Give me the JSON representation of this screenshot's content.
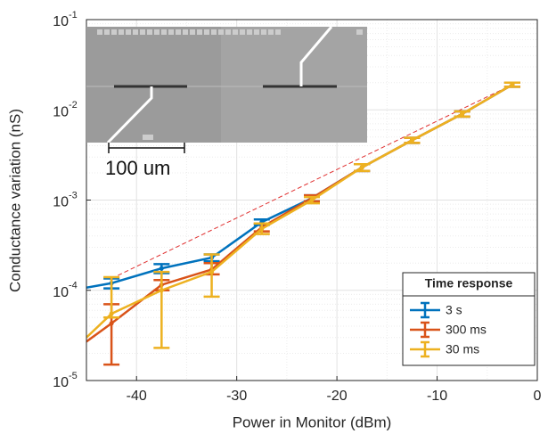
{
  "chart_data": {
    "type": "line",
    "x_label": "Power in Monitor (dBm)",
    "y_label": "Conductance variation (nS)",
    "xlim": [
      -45,
      0
    ],
    "xticks": [
      -40,
      -30,
      -20,
      -10,
      0
    ],
    "ylim": [
      1e-05,
      0.1
    ],
    "log_y": true,
    "yticks": [
      {
        "value": 1e-05,
        "label": "10",
        "exponent": "-5"
      },
      {
        "value": 0.0001,
        "label": "10",
        "exponent": "-4"
      },
      {
        "value": 0.001,
        "label": "10",
        "exponent": "-3"
      },
      {
        "value": 0.01,
        "label": "10",
        "exponent": "-2"
      },
      {
        "value": 0.1,
        "label": "10",
        "exponent": "-1"
      }
    ],
    "grid": true,
    "legend_title": "Time response",
    "legend_position": "lower right",
    "series": [
      {
        "name": "3 s",
        "color": "#0072bd",
        "x": [
          -45,
          -42.5,
          -37.5,
          -32.5,
          -27.5,
          -22.5,
          -17.5,
          -12.5,
          -7.5,
          -2.5
        ],
        "values": [
          0.000107,
          0.00012,
          0.000175,
          0.00023,
          0.00057,
          0.00105,
          0.0023,
          0.0046,
          0.009,
          0.019
        ],
        "err_minus": [
          null,
          1.5e-05,
          2e-05,
          2e-05,
          4e-05,
          8e-05,
          0.0002,
          0.0003,
          0.0006,
          0.001
        ],
        "err_plus": [
          null,
          1.5e-05,
          2e-05,
          2e-05,
          4e-05,
          8e-05,
          0.0002,
          0.0003,
          0.0006,
          0.001
        ]
      },
      {
        "name": "300 ms",
        "color": "#d95319",
        "x": [
          -45,
          -42.5,
          -37.5,
          -32.5,
          -27.5,
          -22.5,
          -17.5,
          -12.5,
          -7.5,
          -2.5
        ],
        "values": [
          2.7e-05,
          4.3e-05,
          0.000115,
          0.00017,
          0.0005,
          0.00105,
          0.0023,
          0.0046,
          0.009,
          0.019
        ],
        "err_minus": [
          null,
          2.8e-05,
          1.5e-05,
          2e-05,
          5e-05,
          8e-05,
          0.0002,
          0.0003,
          0.0006,
          0.001
        ],
        "err_plus": [
          null,
          2.7e-05,
          1.5e-05,
          3e-05,
          5e-05,
          8e-05,
          0.0002,
          0.0003,
          0.0006,
          0.001
        ]
      },
      {
        "name": "30 ms",
        "color": "#edb120",
        "x": [
          -45,
          -42.5,
          -37.5,
          -32.5,
          -27.5,
          -22.5,
          -17.5,
          -12.5,
          -7.5,
          -2.5
        ],
        "values": [
          3e-05,
          5.5e-05,
          0.0001,
          0.00016,
          0.00048,
          0.001,
          0.0023,
          0.0046,
          0.009,
          0.019
        ],
        "err_minus": [
          null,
          5e-06,
          7.7e-05,
          7.5e-05,
          6e-05,
          8e-05,
          0.0002,
          0.0003,
          0.0006,
          0.001
        ],
        "err_plus": [
          null,
          8.5e-05,
          6e-05,
          9e-05,
          7e-05,
          8e-05,
          0.0002,
          0.0003,
          0.0006,
          0.001
        ]
      }
    ],
    "reference_line": {
      "x": [
        -42.5,
        -2.5
      ],
      "values": [
        0.000135,
        0.019
      ],
      "color": "#e03030"
    },
    "inset_scale_label": "100 um"
  }
}
